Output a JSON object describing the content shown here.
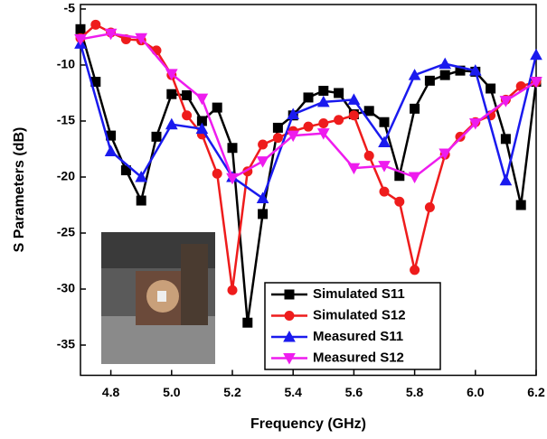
{
  "chart_data": {
    "type": "line",
    "xlabel": "Frequency (GHz)",
    "ylabel": "S Parameters (dB)",
    "xlim": [
      4.7,
      6.2
    ],
    "ylim": [
      -37.7,
      -4.6
    ],
    "xticks": [
      4.8,
      {
        "value": 5,
        "label": "5.0"
      },
      5.2,
      5.4,
      5.6,
      5.8,
      {
        "value": 6,
        "label": "6.0"
      },
      6.2
    ],
    "yticks": [
      -35,
      -30,
      -25,
      -20,
      -15,
      -10,
      -5
    ],
    "legend": "lower-right",
    "series": [
      {
        "name": "Simulated S11",
        "color": "#000000",
        "marker": "square",
        "x": [
          4.7,
          4.75,
          4.8,
          4.85,
          4.9,
          4.95,
          5.0,
          5.05,
          5.1,
          5.15,
          5.2,
          5.25,
          5.3,
          5.35,
          5.4,
          5.45,
          5.5,
          5.55,
          5.6,
          5.65,
          5.7,
          5.75,
          5.8,
          5.85,
          5.9,
          5.95,
          6.0,
          6.05,
          6.1,
          6.15,
          6.2
        ],
        "values": [
          -6.8,
          -11.5,
          -16.3,
          -19.4,
          -22.1,
          -16.4,
          -12.6,
          -12.7,
          -15,
          -13.8,
          -17.4,
          -33,
          -23.3,
          -15.6,
          -14.5,
          -12.9,
          -12.3,
          -12.5,
          -14.4,
          -14.1,
          -15.1,
          -19.9,
          -13.9,
          -11.4,
          -10.9,
          -10.5,
          -10.6,
          -12.1,
          -16.6,
          -22.5,
          -11.5
        ]
      },
      {
        "name": "Simulated S12",
        "color": "#ee1c1c",
        "marker": "circle",
        "x": [
          4.7,
          4.75,
          4.8,
          4.85,
          4.9,
          4.95,
          5.0,
          5.05,
          5.1,
          5.15,
          5.2,
          5.25,
          5.3,
          5.35,
          5.4,
          5.45,
          5.5,
          5.55,
          5.6,
          5.65,
          5.7,
          5.75,
          5.8,
          5.85,
          5.9,
          5.95,
          6.0,
          6.05,
          6.1,
          6.15,
          6.2
        ],
        "values": [
          -7.6,
          -6.4,
          -7.1,
          -7.7,
          -7.8,
          -8.7,
          -10.9,
          -14.5,
          -16.2,
          -19.7,
          -30.1,
          -19.5,
          -17.1,
          -16.5,
          -15.9,
          -15.5,
          -15.2,
          -14.9,
          -14.5,
          -18.1,
          -21.3,
          -22.2,
          -28.3,
          -22.7,
          -18,
          -16.4,
          -15.1,
          -14.5,
          -13.1,
          -11.9,
          -11.5
        ]
      },
      {
        "name": "Measured S11",
        "color": "#1a1aee",
        "marker": "triangle-up",
        "x": [
          4.7,
          4.8,
          4.9,
          5.0,
          5.1,
          5.2,
          5.3,
          5.4,
          5.5,
          5.6,
          5.7,
          5.8,
          5.9,
          6.0,
          6.1,
          6.2
        ],
        "values": [
          -8.1,
          -17.7,
          -20,
          -15.3,
          -15.7,
          -20,
          -21.9,
          -14.4,
          -13.3,
          -13.1,
          -16.9,
          -10.9,
          -9.9,
          -10.5,
          -20.3,
          -9.1
        ]
      },
      {
        "name": "Measured S12",
        "color": "#ee1cee",
        "marker": "triangle-down",
        "x": [
          4.7,
          4.8,
          4.9,
          5.0,
          5.1,
          5.2,
          5.3,
          5.4,
          5.5,
          5.6,
          5.7,
          5.8,
          5.9,
          6.0,
          6.1,
          6.2
        ],
        "values": [
          -7.7,
          -7.2,
          -7.6,
          -10.8,
          -13,
          -20.1,
          -18.6,
          -16.3,
          -16.1,
          -19.2,
          -19,
          -20,
          -17.9,
          -15.2,
          -13.2,
          -11.5
        ]
      }
    ]
  }
}
